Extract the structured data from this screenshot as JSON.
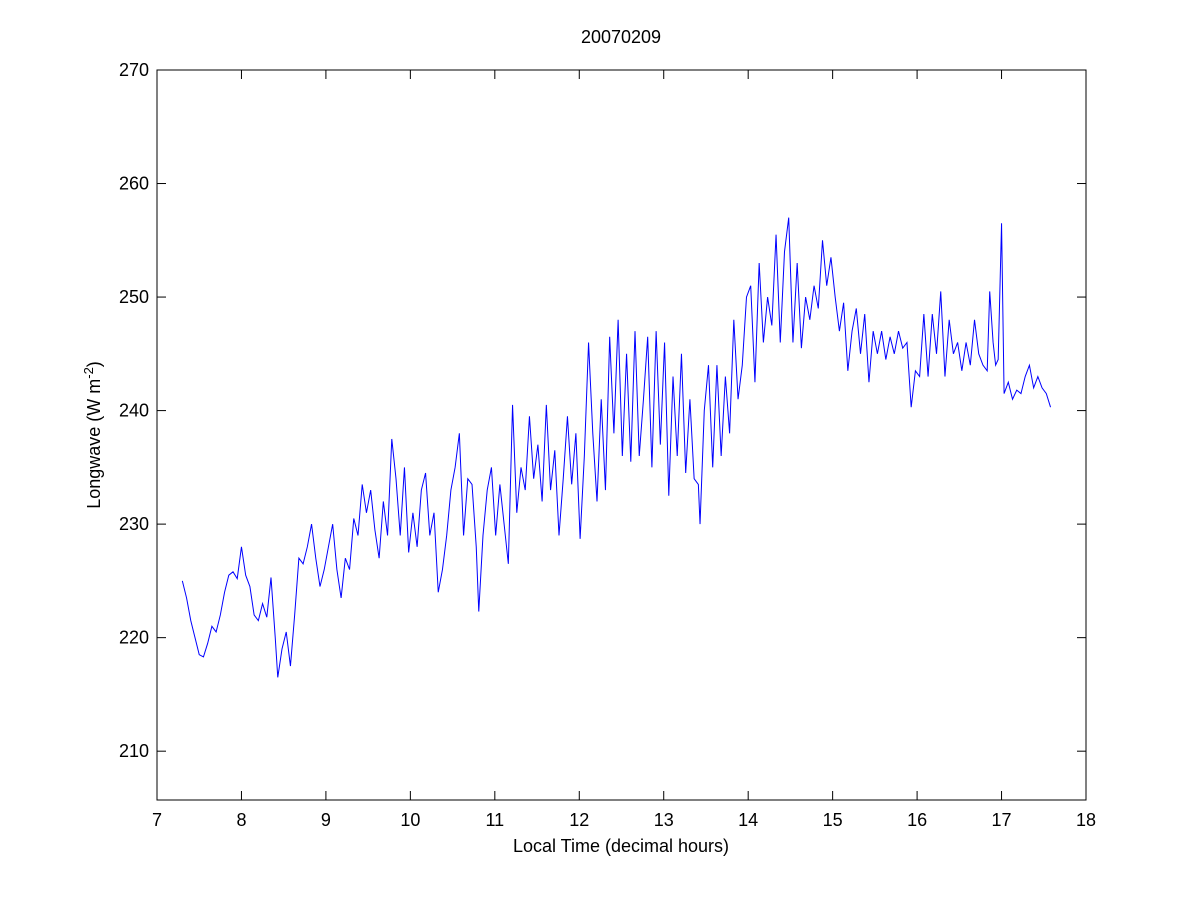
{
  "chart_data": {
    "type": "line",
    "title": "20070209",
    "xlabel": "Local Time (decimal hours)",
    "ylabel": [
      "Longwave (W m",
      "-2",
      ")"
    ],
    "xlim": [
      7,
      18
    ],
    "ylim": [
      205.7,
      270
    ],
    "xticks": [
      7,
      8,
      9,
      10,
      11,
      12,
      13,
      14,
      15,
      16,
      17,
      18
    ],
    "yticks": [
      210,
      220,
      230,
      240,
      250,
      260,
      270
    ],
    "box": true,
    "x": [
      7.3,
      7.35,
      7.4,
      7.45,
      7.5,
      7.55,
      7.6,
      7.65,
      7.7,
      7.75,
      7.8,
      7.85,
      7.9,
      7.95,
      8.0,
      8.05,
      8.1,
      8.15,
      8.2,
      8.25,
      8.3,
      8.35,
      8.4,
      8.43,
      8.48,
      8.53,
      8.58,
      8.63,
      8.68,
      8.73,
      8.78,
      8.83,
      8.88,
      8.93,
      8.98,
      9.03,
      9.08,
      9.13,
      9.18,
      9.23,
      9.28,
      9.33,
      9.38,
      9.43,
      9.48,
      9.53,
      9.58,
      9.63,
      9.68,
      9.73,
      9.78,
      9.83,
      9.88,
      9.93,
      9.98,
      10.03,
      10.08,
      10.13,
      10.18,
      10.23,
      10.28,
      10.33,
      10.38,
      10.43,
      10.48,
      10.53,
      10.58,
      10.63,
      10.68,
      10.73,
      10.78,
      10.81,
      10.86,
      10.91,
      10.96,
      11.01,
      11.06,
      11.11,
      11.16,
      11.21,
      11.26,
      11.31,
      11.36,
      11.41,
      11.46,
      11.51,
      11.56,
      11.61,
      11.66,
      11.71,
      11.76,
      11.81,
      11.86,
      11.91,
      11.96,
      12.01,
      12.06,
      12.11,
      12.16,
      12.21,
      12.26,
      12.31,
      12.36,
      12.41,
      12.46,
      12.51,
      12.56,
      12.61,
      12.66,
      12.71,
      12.76,
      12.81,
      12.86,
      12.91,
      12.96,
      13.01,
      13.06,
      13.11,
      13.16,
      13.21,
      13.26,
      13.31,
      13.36,
      13.41,
      13.43,
      13.48,
      13.53,
      13.58,
      13.63,
      13.68,
      13.73,
      13.78,
      13.83,
      13.88,
      13.93,
      13.98,
      14.03,
      14.08,
      14.13,
      14.18,
      14.23,
      14.28,
      14.33,
      14.38,
      14.43,
      14.48,
      14.53,
      14.58,
      14.63,
      14.68,
      14.73,
      14.78,
      14.83,
      14.88,
      14.93,
      14.98,
      15.03,
      15.08,
      15.13,
      15.18,
      15.23,
      15.28,
      15.33,
      15.38,
      15.43,
      15.48,
      15.53,
      15.58,
      15.63,
      15.68,
      15.73,
      15.78,
      15.83,
      15.88,
      15.93,
      15.98,
      16.03,
      16.08,
      16.13,
      16.18,
      16.23,
      16.28,
      16.33,
      16.38,
      16.43,
      16.48,
      16.53,
      16.58,
      16.63,
      16.68,
      16.73,
      16.78,
      16.83,
      16.86,
      16.9,
      16.93,
      16.96,
      17.0,
      17.03,
      17.08,
      17.13,
      17.18,
      17.23,
      17.28,
      17.33,
      17.38,
      17.43,
      17.48,
      17.53,
      17.58
    ],
    "series": [
      {
        "color": "#0000ff",
        "values": [
          225,
          223.5,
          221.5,
          220,
          218.5,
          218.3,
          219.5,
          221,
          220.5,
          222,
          224,
          225.5,
          225.8,
          225.2,
          228,
          225.5,
          224.5,
          222,
          221.5,
          223,
          221.8,
          225.3,
          220,
          216.5,
          219,
          220.5,
          217.5,
          222,
          227,
          226.5,
          228,
          230,
          227,
          224.5,
          226,
          228,
          230,
          226,
          223.5,
          227,
          226,
          230.5,
          229,
          233.5,
          231,
          233,
          229.5,
          227,
          232,
          229,
          237.5,
          234,
          229,
          235,
          227.5,
          231,
          228,
          233,
          234.5,
          229,
          231,
          224,
          226,
          229,
          233,
          235,
          238,
          229,
          234,
          233.5,
          228,
          222.3,
          229,
          233,
          235,
          229,
          233.5,
          230,
          226.5,
          240.5,
          231,
          235,
          233,
          239.5,
          234,
          237,
          232,
          240.5,
          233,
          236.5,
          229,
          234,
          239.5,
          233.5,
          238,
          228.7,
          236,
          246,
          238,
          232,
          241,
          233,
          246.5,
          238,
          248,
          236,
          245,
          235.5,
          247,
          236,
          241,
          246.5,
          235,
          247,
          237,
          246,
          232.5,
          243,
          236,
          245,
          234.5,
          241,
          234,
          233.5,
          230,
          240,
          244,
          235,
          244,
          236,
          243,
          238,
          248,
          241,
          244,
          250,
          251,
          242.5,
          253,
          246,
          250,
          247.5,
          255.5,
          246,
          254,
          257,
          246,
          253,
          245.5,
          250,
          248,
          251,
          249,
          255,
          251,
          253.5,
          250,
          247,
          249.5,
          243.5,
          247,
          249,
          245,
          248.5,
          242.5,
          247,
          245,
          247,
          244.5,
          246.5,
          245,
          247,
          245.5,
          246,
          240.3,
          243.5,
          243,
          248.5,
          243,
          248.5,
          245,
          250.5,
          243,
          248,
          245,
          246,
          243.5,
          246,
          244,
          248,
          245,
          244,
          243.5,
          250.5,
          246,
          244,
          244.5,
          256.5,
          241.5,
          242.5,
          241,
          241.8,
          241.5,
          243,
          244,
          242,
          243,
          242,
          241.5,
          240.3
        ]
      }
    ]
  }
}
